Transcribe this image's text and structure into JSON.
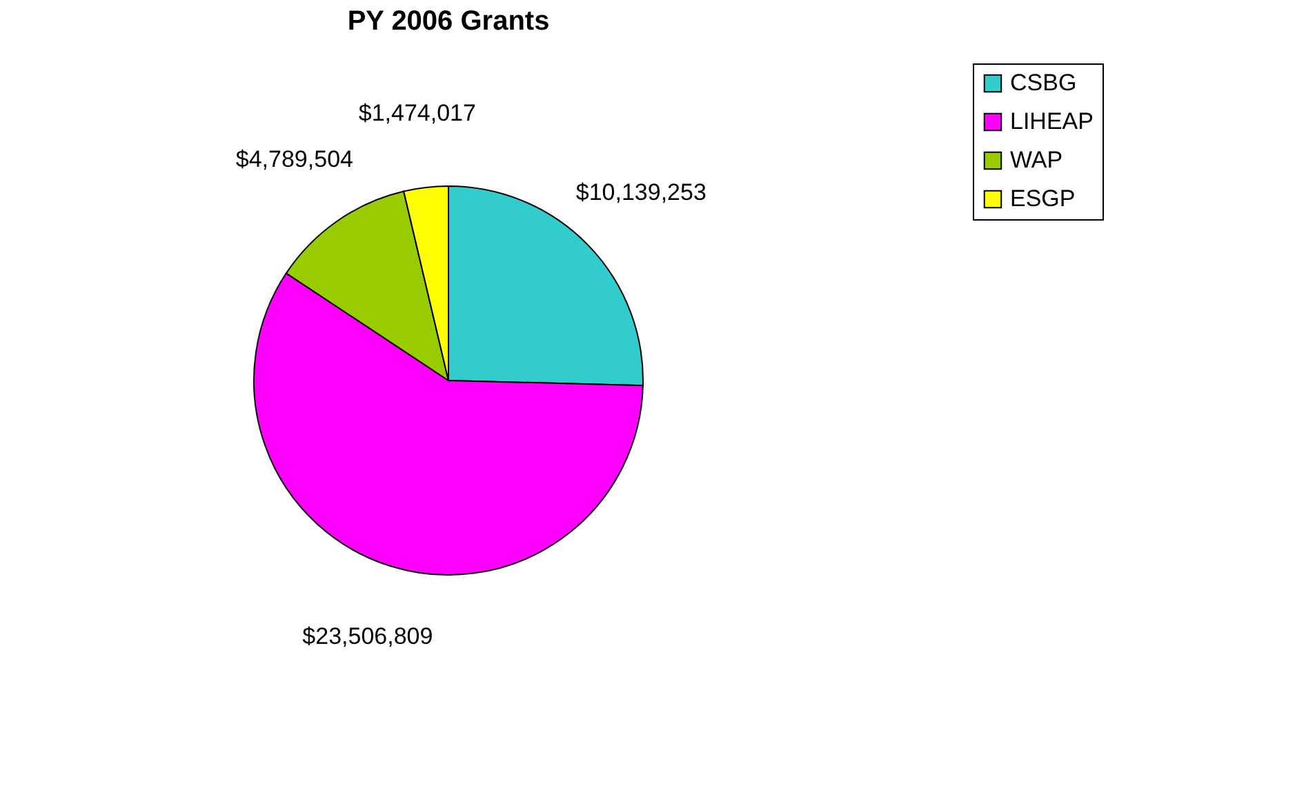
{
  "chart_data": {
    "type": "pie",
    "title": "PY 2006 Grants",
    "categories": [
      "CSBG",
      "LIHEAP",
      "WAP",
      "ESGP"
    ],
    "values": [
      10139253,
      23506809,
      4789504,
      1474017
    ],
    "colors": [
      "#33cccc",
      "#ff00ff",
      "#99cc00",
      "#ffff00"
    ],
    "value_labels": [
      "$10,139,253",
      "$23,506,809",
      "$4,789,504",
      "$1,474,017"
    ],
    "legend": "right"
  }
}
